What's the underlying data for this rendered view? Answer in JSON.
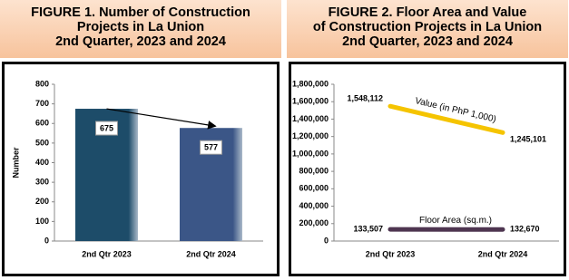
{
  "chart_data": [
    {
      "type": "bar",
      "title": [
        "FIGURE 1. Number of Construction",
        "Projects in La Union",
        "2nd Quarter, 2023 and 2024"
      ],
      "y_label": "Number",
      "categories": [
        "2nd Qtr 2023",
        "2nd Qtr 2024"
      ],
      "values": [
        675,
        577
      ],
      "colors": [
        "#1d4c69",
        "#3b5687"
      ],
      "ylim": [
        0,
        800
      ],
      "yticks": [
        0,
        100,
        200,
        300,
        400,
        500,
        600,
        700,
        800
      ],
      "grid": false
    },
    {
      "type": "line",
      "title": [
        "FIGURE 2. Floor Area and Value",
        "of Construction Projects in La Union",
        "2nd Quarter, 2023 and 2024"
      ],
      "categories": [
        "2nd Qtr 2023",
        "2nd Qtr 2024"
      ],
      "series": [
        {
          "name": "Value (in PhP 1,000)",
          "color": "#f5c400",
          "values": [
            1548112,
            1245101
          ],
          "value_labels": [
            "1,548,112",
            "1,245,101"
          ]
        },
        {
          "name": "Floor Area (sq.m.)",
          "color": "#4e3550",
          "values": [
            133507,
            132670
          ],
          "value_labels": [
            "133,507",
            "132,670"
          ]
        }
      ],
      "ylim": [
        0,
        1800000
      ],
      "yticks": [
        {
          "value": 0,
          "label": "0"
        },
        {
          "value": 200000,
          "label": "200,000"
        },
        {
          "value": 400000,
          "label": "400,000"
        },
        {
          "value": 600000,
          "label": "600,000"
        },
        {
          "value": 800000,
          "label": "800,000"
        },
        {
          "value": 1000000,
          "label": "1,000,000"
        },
        {
          "value": 1200000,
          "label": "1,200,000"
        },
        {
          "value": 1400000,
          "label": "1,400,000"
        },
        {
          "value": 1600000,
          "label": "1,600,000"
        },
        {
          "value": 1800000,
          "label": "1,800,000"
        }
      ],
      "grid": false
    }
  ]
}
